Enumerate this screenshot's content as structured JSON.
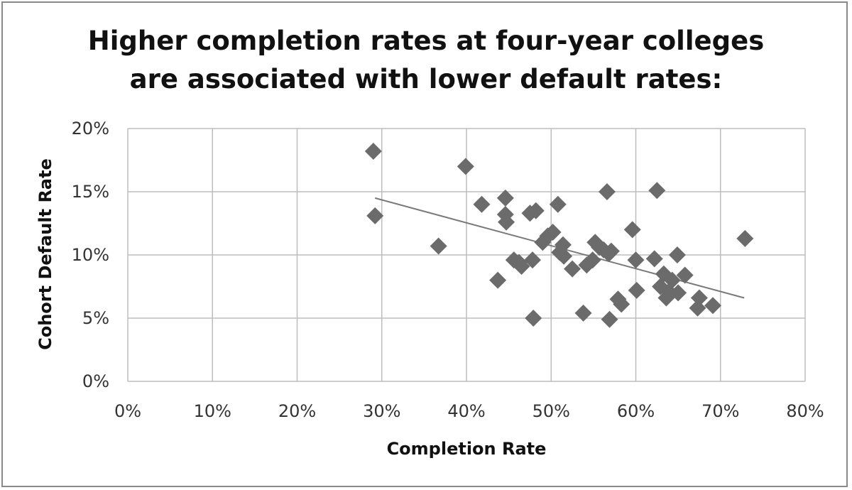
{
  "chart_data": {
    "type": "scatter",
    "title_lines": [
      "Higher completion rates at four-year colleges",
      "are associated with lower default rates:"
    ],
    "xlabel": "Completion Rate",
    "ylabel": "Cohort Default Rate",
    "xlim": [
      0,
      80
    ],
    "ylim": [
      0,
      20
    ],
    "x_ticks": [
      0,
      10,
      20,
      30,
      40,
      50,
      60,
      70,
      80
    ],
    "y_ticks": [
      0,
      5,
      10,
      15,
      20
    ],
    "x_tick_labels": [
      "0%",
      "10%",
      "20%",
      "30%",
      "40%",
      "50%",
      "60%",
      "70%",
      "80%"
    ],
    "y_tick_labels": [
      "0%",
      "5%",
      "10%",
      "15%",
      "20%"
    ],
    "grid": true,
    "legend": "none",
    "marker": "diamond",
    "marker_color": "#6b6b6b",
    "trendline_color": "#7a7a7a",
    "grid_color": "#bdbdbd",
    "points": [
      {
        "x": 29.0,
        "y": 18.2
      },
      {
        "x": 29.2,
        "y": 13.1
      },
      {
        "x": 36.7,
        "y": 10.7
      },
      {
        "x": 39.9,
        "y": 17.0
      },
      {
        "x": 41.8,
        "y": 14.0
      },
      {
        "x": 43.7,
        "y": 8.0
      },
      {
        "x": 44.6,
        "y": 14.5
      },
      {
        "x": 44.6,
        "y": 13.2
      },
      {
        "x": 44.7,
        "y": 12.6
      },
      {
        "x": 45.6,
        "y": 9.6
      },
      {
        "x": 46.2,
        "y": 9.4
      },
      {
        "x": 46.5,
        "y": 9.1
      },
      {
        "x": 47.5,
        "y": 13.3
      },
      {
        "x": 47.8,
        "y": 9.6
      },
      {
        "x": 47.9,
        "y": 5.0
      },
      {
        "x": 48.2,
        "y": 13.5
      },
      {
        "x": 49.0,
        "y": 11.0
      },
      {
        "x": 49.6,
        "y": 11.5
      },
      {
        "x": 50.2,
        "y": 11.8
      },
      {
        "x": 50.8,
        "y": 14.0
      },
      {
        "x": 51.0,
        "y": 10.2
      },
      {
        "x": 51.4,
        "y": 10.8
      },
      {
        "x": 51.5,
        "y": 9.9
      },
      {
        "x": 52.5,
        "y": 8.9
      },
      {
        "x": 53.8,
        "y": 5.4
      },
      {
        "x": 54.2,
        "y": 9.2
      },
      {
        "x": 54.9,
        "y": 9.6
      },
      {
        "x": 55.2,
        "y": 11.0
      },
      {
        "x": 55.7,
        "y": 10.6
      },
      {
        "x": 56.2,
        "y": 10.4
      },
      {
        "x": 56.6,
        "y": 15.0
      },
      {
        "x": 56.8,
        "y": 10.1
      },
      {
        "x": 56.9,
        "y": 4.9
      },
      {
        "x": 57.1,
        "y": 10.3
      },
      {
        "x": 57.9,
        "y": 6.5
      },
      {
        "x": 58.3,
        "y": 6.1
      },
      {
        "x": 59.6,
        "y": 12.0
      },
      {
        "x": 60.0,
        "y": 9.6
      },
      {
        "x": 60.1,
        "y": 7.2
      },
      {
        "x": 62.2,
        "y": 9.7
      },
      {
        "x": 62.5,
        "y": 15.1
      },
      {
        "x": 62.9,
        "y": 7.5
      },
      {
        "x": 63.3,
        "y": 8.5
      },
      {
        "x": 63.6,
        "y": 6.6
      },
      {
        "x": 63.9,
        "y": 7.1
      },
      {
        "x": 64.3,
        "y": 8.0
      },
      {
        "x": 64.9,
        "y": 10.0
      },
      {
        "x": 65.0,
        "y": 7.0
      },
      {
        "x": 65.8,
        "y": 8.4
      },
      {
        "x": 67.3,
        "y": 5.8
      },
      {
        "x": 67.5,
        "y": 6.6
      },
      {
        "x": 69.1,
        "y": 6.0
      },
      {
        "x": 72.9,
        "y": 11.3
      }
    ],
    "trendline": {
      "x": [
        29.2,
        72.8
      ],
      "y": [
        14.5,
        6.6
      ]
    }
  }
}
